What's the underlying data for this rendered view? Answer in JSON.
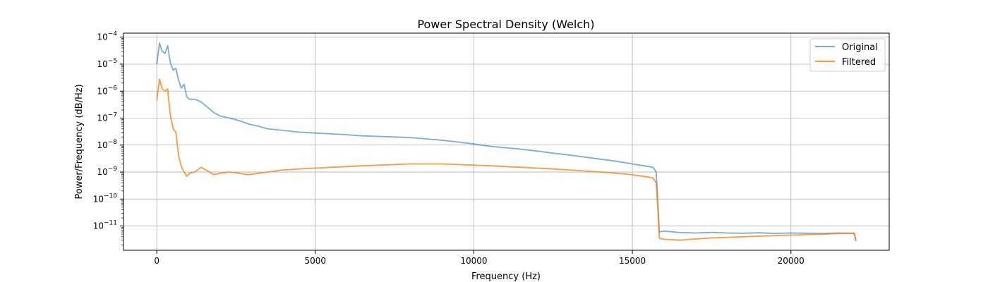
{
  "chart_data": {
    "type": "line",
    "title": "Power Spectral Density (Welch)",
    "xlabel": "Frequency (Hz)",
    "ylabel": "Power/Frequency (dB/Hz)",
    "xlim": [
      -1050,
      23100
    ],
    "ylim_log10": [
      -11.9,
      -3.85
    ],
    "yscale": "log",
    "grid": true,
    "legend_position": "top-right",
    "x_ticks": [
      {
        "value": 0,
        "label": "0"
      },
      {
        "value": 5000,
        "label": "5000"
      },
      {
        "value": 10000,
        "label": "10000"
      },
      {
        "value": 15000,
        "label": "15000"
      },
      {
        "value": 20000,
        "label": "20000"
      }
    ],
    "y_ticks": [
      {
        "exp": -4,
        "base": "10",
        "sup": "−4"
      },
      {
        "exp": -5,
        "base": "10",
        "sup": "−5"
      },
      {
        "exp": -6,
        "base": "10",
        "sup": "−6"
      },
      {
        "exp": -7,
        "base": "10",
        "sup": "−7"
      },
      {
        "exp": -8,
        "base": "10",
        "sup": "−8"
      },
      {
        "exp": -9,
        "base": "10",
        "sup": "−9"
      },
      {
        "exp": -10,
        "base": "10",
        "sup": "−10"
      },
      {
        "exp": -11,
        "base": "10",
        "sup": "−11"
      }
    ],
    "series": [
      {
        "name": "Original",
        "color": "#1f77b4",
        "opacity": 0.6,
        "points": [
          [
            0,
            1e-05
          ],
          [
            86,
            6e-05
          ],
          [
            172,
            3e-05
          ],
          [
            258,
            2.5e-05
          ],
          [
            344,
            4.8e-05
          ],
          [
            430,
            1.1e-05
          ],
          [
            516,
            6e-06
          ],
          [
            602,
            7e-06
          ],
          [
            688,
            2.5e-06
          ],
          [
            774,
            1.3e-06
          ],
          [
            860,
            1.8e-06
          ],
          [
            946,
            6e-07
          ],
          [
            1032,
            5e-07
          ],
          [
            1200,
            5e-07
          ],
          [
            1400,
            4e-07
          ],
          [
            1600,
            2.5e-07
          ],
          [
            1800,
            1.6e-07
          ],
          [
            2000,
            1.2e-07
          ],
          [
            2300,
            1e-07
          ],
          [
            2600,
            8e-08
          ],
          [
            2900,
            6e-08
          ],
          [
            3200,
            5e-08
          ],
          [
            3500,
            4e-08
          ],
          [
            4000,
            3.5e-08
          ],
          [
            4500,
            3e-08
          ],
          [
            5000,
            2.8e-08
          ],
          [
            5500,
            2.6e-08
          ],
          [
            6000,
            2.4e-08
          ],
          [
            6500,
            2.2e-08
          ],
          [
            7000,
            2.1e-08
          ],
          [
            7500,
            2e-08
          ],
          [
            8000,
            1.9e-08
          ],
          [
            8500,
            1.7e-08
          ],
          [
            9000,
            1.5e-08
          ],
          [
            9500,
            1.3e-08
          ],
          [
            10000,
            1.1e-08
          ],
          [
            10500,
            9e-09
          ],
          [
            11000,
            8e-09
          ],
          [
            11500,
            7e-09
          ],
          [
            12000,
            6e-09
          ],
          [
            12500,
            5e-09
          ],
          [
            13000,
            4.3e-09
          ],
          [
            13500,
            3.6e-09
          ],
          [
            14000,
            3e-09
          ],
          [
            14500,
            2.5e-09
          ],
          [
            15000,
            2e-09
          ],
          [
            15500,
            1.6e-09
          ],
          [
            15650,
            1.5e-09
          ],
          [
            15750,
            1e-09
          ],
          [
            15800,
            1e-10
          ],
          [
            15850,
            6e-12
          ],
          [
            16000,
            6.5e-12
          ],
          [
            16500,
            5.7e-12
          ],
          [
            17000,
            5.5e-12
          ],
          [
            17500,
            5.8e-12
          ],
          [
            18000,
            5.5e-12
          ],
          [
            18500,
            5.4e-12
          ],
          [
            19000,
            5.6e-12
          ],
          [
            19500,
            5.3e-12
          ],
          [
            20000,
            5.5e-12
          ],
          [
            20500,
            5.4e-12
          ],
          [
            21000,
            5.3e-12
          ],
          [
            21500,
            5.5e-12
          ],
          [
            22000,
            5.4e-12
          ],
          [
            22050,
            2.8e-12
          ]
        ]
      },
      {
        "name": "Filtered",
        "color": "#ff7f0e",
        "opacity": 0.8,
        "points": [
          [
            0,
            4.5e-07
          ],
          [
            86,
            2.8e-06
          ],
          [
            172,
            1.2e-06
          ],
          [
            258,
            1e-06
          ],
          [
            344,
            1.2e-06
          ],
          [
            430,
            1.2e-07
          ],
          [
            516,
            4e-08
          ],
          [
            602,
            3e-08
          ],
          [
            688,
            4e-09
          ],
          [
            774,
            1.6e-09
          ],
          [
            860,
            1e-09
          ],
          [
            946,
            7e-10
          ],
          [
            1032,
            9e-10
          ],
          [
            1200,
            1e-09
          ],
          [
            1400,
            1.5e-09
          ],
          [
            1600,
            1.1e-09
          ],
          [
            1800,
            8e-10
          ],
          [
            2000,
            9e-10
          ],
          [
            2300,
            1e-09
          ],
          [
            2600,
            9e-10
          ],
          [
            2900,
            8e-10
          ],
          [
            3200,
            9e-10
          ],
          [
            3500,
            1e-09
          ],
          [
            4000,
            1.2e-09
          ],
          [
            4500,
            1.3e-09
          ],
          [
            5000,
            1.4e-09
          ],
          [
            5500,
            1.5e-09
          ],
          [
            6000,
            1.6e-09
          ],
          [
            6500,
            1.7e-09
          ],
          [
            7000,
            1.8e-09
          ],
          [
            7500,
            1.9e-09
          ],
          [
            8000,
            2e-09
          ],
          [
            8500,
            2e-09
          ],
          [
            9000,
            2e-09
          ],
          [
            9500,
            1.9e-09
          ],
          [
            10000,
            1.8e-09
          ],
          [
            10500,
            1.7e-09
          ],
          [
            11000,
            1.6e-09
          ],
          [
            11500,
            1.5e-09
          ],
          [
            12000,
            1.4e-09
          ],
          [
            12500,
            1.3e-09
          ],
          [
            13000,
            1.2e-09
          ],
          [
            13500,
            1.1e-09
          ],
          [
            14000,
            1e-09
          ],
          [
            14500,
            9e-10
          ],
          [
            15000,
            8e-10
          ],
          [
            15500,
            6.5e-10
          ],
          [
            15650,
            6e-10
          ],
          [
            15750,
            4e-10
          ],
          [
            15800,
            5e-11
          ],
          [
            15850,
            3.5e-12
          ],
          [
            16000,
            3.2e-12
          ],
          [
            16500,
            3e-12
          ],
          [
            17000,
            3.3e-12
          ],
          [
            17500,
            3.6e-12
          ],
          [
            18000,
            3.8e-12
          ],
          [
            18500,
            4e-12
          ],
          [
            19000,
            4.2e-12
          ],
          [
            19500,
            4.4e-12
          ],
          [
            20000,
            4.6e-12
          ],
          [
            20500,
            4.8e-12
          ],
          [
            21000,
            5e-12
          ],
          [
            21500,
            5.2e-12
          ],
          [
            22000,
            5.3e-12
          ],
          [
            22050,
            2.8e-12
          ]
        ]
      }
    ]
  }
}
